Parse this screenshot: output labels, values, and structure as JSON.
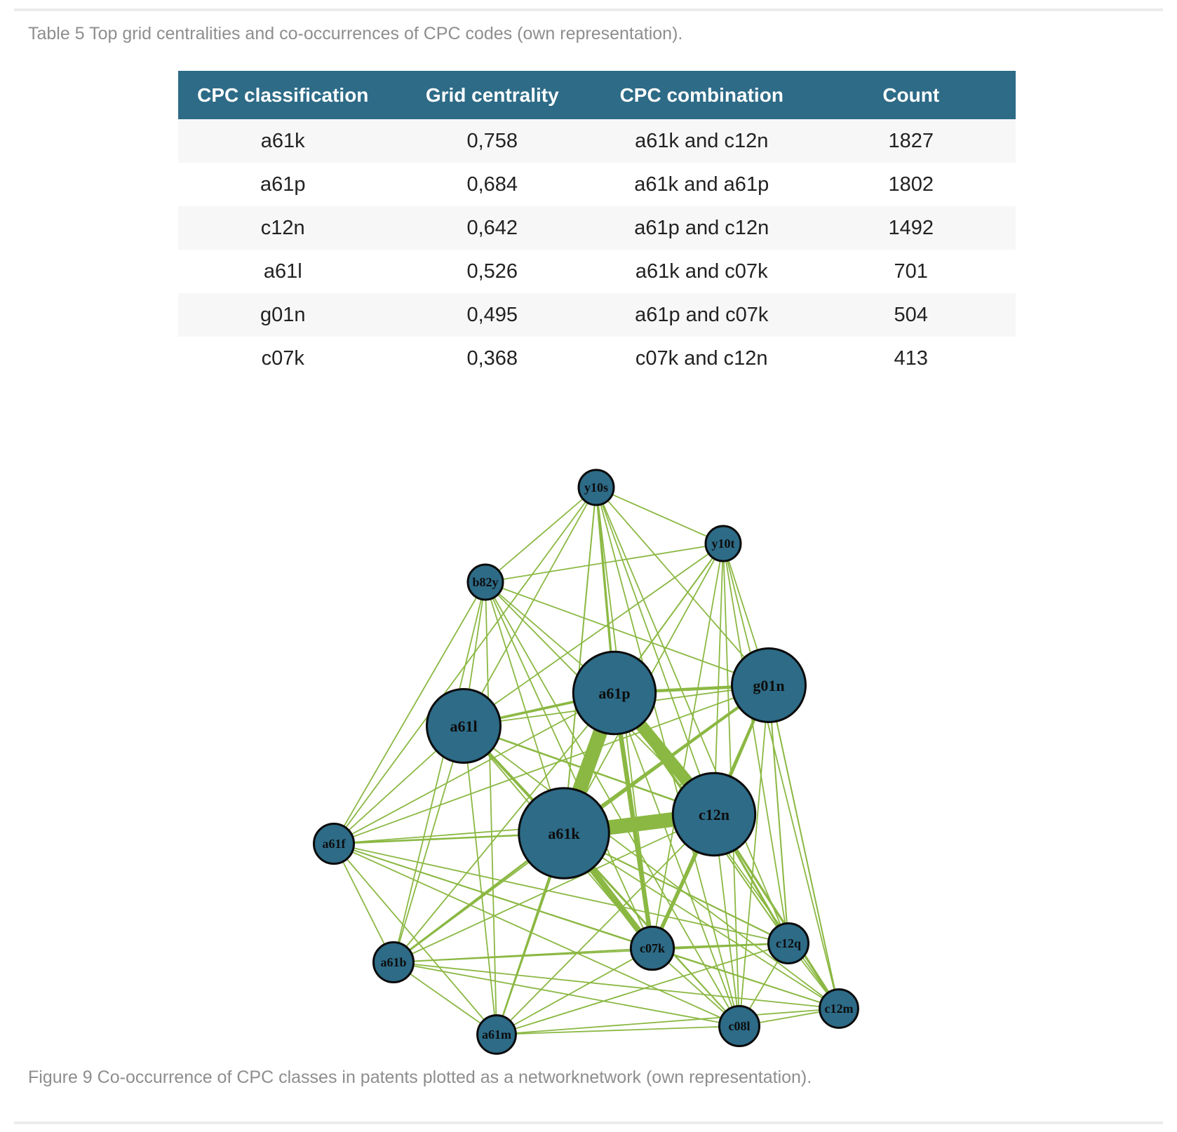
{
  "table_caption": "Table 5 Top grid centralities and co-occurrences of CPC codes (own representation).",
  "table": {
    "headers": [
      "CPC classification",
      "Grid centrality",
      "CPC combination",
      "Count"
    ],
    "rows": [
      [
        "a61k",
        "0,758",
        "a61k and c12n",
        "1827"
      ],
      [
        "a61p",
        "0,684",
        "a61k and a61p",
        "1802"
      ],
      [
        "c12n",
        "0,642",
        "a61p and c12n",
        "1492"
      ],
      [
        "a61l",
        "0,526",
        "a61k and c07k",
        "701"
      ],
      [
        "g01n",
        "0,495",
        "a61p and c07k",
        "504"
      ],
      [
        "c07k",
        "0,368",
        "c07k and c12n",
        "413"
      ]
    ]
  },
  "figure_caption": "Figure 9 Co-occurrence of CPC classes in patents plotted as a networknetwork (own representation).",
  "network": {
    "node_color": "#2d6b87",
    "edge_color": "#8bb843",
    "nodes": [
      {
        "id": "y10s",
        "label": "y10s",
        "size": 1
      },
      {
        "id": "y10t",
        "label": "y10t",
        "size": 1
      },
      {
        "id": "b82y",
        "label": "b82y",
        "size": 1
      },
      {
        "id": "a61p",
        "label": "a61p",
        "size": 5
      },
      {
        "id": "g01n",
        "label": "g01n",
        "size": 4
      },
      {
        "id": "a61l",
        "label": "a61l",
        "size": 4
      },
      {
        "id": "c12n",
        "label": "c12n",
        "size": 5
      },
      {
        "id": "a61k",
        "label": "a61k",
        "size": 6
      },
      {
        "id": "a61f",
        "label": "a61f",
        "size": 1.3
      },
      {
        "id": "c07k",
        "label": "c07k",
        "size": 1.5
      },
      {
        "id": "c12q",
        "label": "c12q",
        "size": 1.3
      },
      {
        "id": "a61b",
        "label": "a61b",
        "size": 1.3
      },
      {
        "id": "c12m",
        "label": "c12m",
        "size": 1.2
      },
      {
        "id": "c08l",
        "label": "c08l",
        "size": 1.3
      },
      {
        "id": "a61m",
        "label": "a61m",
        "size": 1.2
      }
    ],
    "edges": [
      {
        "source": "a61k",
        "target": "c12n",
        "weight": 1827
      },
      {
        "source": "a61k",
        "target": "a61p",
        "weight": 1802
      },
      {
        "source": "a61p",
        "target": "c12n",
        "weight": 1492
      },
      {
        "source": "a61k",
        "target": "c07k",
        "weight": 701
      },
      {
        "source": "a61p",
        "target": "c07k",
        "weight": 504
      },
      {
        "source": "c07k",
        "target": "c12n",
        "weight": 413
      },
      {
        "source": "a61p",
        "target": "g01n",
        "weight": 320
      },
      {
        "source": "a61k",
        "target": "g01n",
        "weight": 300
      },
      {
        "source": "g01n",
        "target": "c12n",
        "weight": 300
      },
      {
        "source": "a61l",
        "target": "a61k",
        "weight": 280
      },
      {
        "source": "a61l",
        "target": "a61p",
        "weight": 250
      },
      {
        "source": "a61p",
        "target": "y10s",
        "weight": 220
      },
      {
        "source": "c12n",
        "target": "c12m",
        "weight": 210
      },
      {
        "source": "c12n",
        "target": "c12q",
        "weight": 200
      },
      {
        "source": "a61k",
        "target": "a61b",
        "weight": 190
      },
      {
        "source": "a61l",
        "target": "c12n",
        "weight": 150
      },
      {
        "source": "a61k",
        "target": "a61m",
        "weight": 150
      },
      {
        "source": "a61f",
        "target": "a61k",
        "weight": 150
      },
      {
        "source": "c07k",
        "target": "c12q",
        "weight": 150
      },
      {
        "source": "a61k",
        "target": "c12q",
        "weight": 120
      },
      {
        "source": "a61p",
        "target": "c12q",
        "weight": 100
      },
      {
        "source": "g01n",
        "target": "c07k",
        "weight": 100
      },
      {
        "source": "g01n",
        "target": "c12q",
        "weight": 100
      },
      {
        "source": "g01n",
        "target": "c12m",
        "weight": 100
      },
      {
        "source": "a61k",
        "target": "y10s",
        "weight": 100
      },
      {
        "source": "a61p",
        "target": "y10t",
        "weight": 100
      },
      {
        "source": "y10s",
        "target": "b82y",
        "weight": 80
      },
      {
        "source": "y10s",
        "target": "y10t",
        "weight": 80
      },
      {
        "source": "y10s",
        "target": "a61l",
        "weight": 80
      },
      {
        "source": "y10s",
        "target": "c12n",
        "weight": 80
      },
      {
        "source": "y10s",
        "target": "g01n",
        "weight": 80
      },
      {
        "source": "y10s",
        "target": "c07k",
        "weight": 80
      },
      {
        "source": "y10s",
        "target": "c12q",
        "weight": 80
      },
      {
        "source": "y10s",
        "target": "c08l",
        "weight": 80
      },
      {
        "source": "y10s",
        "target": "a61f",
        "weight": 80
      },
      {
        "source": "y10t",
        "target": "b82y",
        "weight": 80
      },
      {
        "source": "y10t",
        "target": "a61l",
        "weight": 80
      },
      {
        "source": "y10t",
        "target": "a61k",
        "weight": 80
      },
      {
        "source": "y10t",
        "target": "c12n",
        "weight": 80
      },
      {
        "source": "y10t",
        "target": "g01n",
        "weight": 80
      },
      {
        "source": "y10t",
        "target": "c07k",
        "weight": 80
      },
      {
        "source": "y10t",
        "target": "c12m",
        "weight": 80
      },
      {
        "source": "y10t",
        "target": "c08l",
        "weight": 80
      },
      {
        "source": "y10t",
        "target": "c12q",
        "weight": 80
      },
      {
        "source": "b82y",
        "target": "a61l",
        "weight": 80
      },
      {
        "source": "b82y",
        "target": "a61k",
        "weight": 80
      },
      {
        "source": "b82y",
        "target": "a61p",
        "weight": 80
      },
      {
        "source": "b82y",
        "target": "c12n",
        "weight": 80
      },
      {
        "source": "b82y",
        "target": "g01n",
        "weight": 80
      },
      {
        "source": "b82y",
        "target": "a61f",
        "weight": 80
      },
      {
        "source": "b82y",
        "target": "a61b",
        "weight": 80
      },
      {
        "source": "b82y",
        "target": "a61m",
        "weight": 80
      },
      {
        "source": "b82y",
        "target": "c07k",
        "weight": 80
      },
      {
        "source": "b82y",
        "target": "c08l",
        "weight": 80
      },
      {
        "source": "a61l",
        "target": "g01n",
        "weight": 80
      },
      {
        "source": "a61l",
        "target": "a61f",
        "weight": 80
      },
      {
        "source": "a61l",
        "target": "a61b",
        "weight": 80
      },
      {
        "source": "a61l",
        "target": "a61m",
        "weight": 80
      },
      {
        "source": "a61l",
        "target": "c07k",
        "weight": 80
      },
      {
        "source": "a61l",
        "target": "c08l",
        "weight": 80
      },
      {
        "source": "a61l",
        "target": "c12m",
        "weight": 80
      },
      {
        "source": "a61p",
        "target": "a61f",
        "weight": 80
      },
      {
        "source": "a61p",
        "target": "a61b",
        "weight": 80
      },
      {
        "source": "a61p",
        "target": "a61m",
        "weight": 80
      },
      {
        "source": "a61p",
        "target": "c08l",
        "weight": 80
      },
      {
        "source": "a61p",
        "target": "c12m",
        "weight": 80
      },
      {
        "source": "g01n",
        "target": "a61f",
        "weight": 80
      },
      {
        "source": "g01n",
        "target": "a61b",
        "weight": 80
      },
      {
        "source": "g01n",
        "target": "c08l",
        "weight": 80
      },
      {
        "source": "c12n",
        "target": "a61f",
        "weight": 80
      },
      {
        "source": "c12n",
        "target": "a61b",
        "weight": 80
      },
      {
        "source": "c12n",
        "target": "a61m",
        "weight": 80
      },
      {
        "source": "c12n",
        "target": "c08l",
        "weight": 80
      },
      {
        "source": "a61k",
        "target": "c08l",
        "weight": 80
      },
      {
        "source": "a61k",
        "target": "c12m",
        "weight": 80
      },
      {
        "source": "a61f",
        "target": "a61b",
        "weight": 80
      },
      {
        "source": "a61f",
        "target": "a61m",
        "weight": 80
      },
      {
        "source": "a61f",
        "target": "c07k",
        "weight": 80
      },
      {
        "source": "a61f",
        "target": "c08l",
        "weight": 80
      },
      {
        "source": "a61f",
        "target": "c12q",
        "weight": 80
      },
      {
        "source": "a61f",
        "target": "c12m",
        "weight": 80
      },
      {
        "source": "a61b",
        "target": "a61m",
        "weight": 80
      },
      {
        "source": "a61b",
        "target": "c07k",
        "weight": 80
      },
      {
        "source": "a61b",
        "target": "c08l",
        "weight": 80
      },
      {
        "source": "a61b",
        "target": "c12q",
        "weight": 80
      },
      {
        "source": "a61b",
        "target": "c12m",
        "weight": 80
      },
      {
        "source": "a61m",
        "target": "c07k",
        "weight": 80
      },
      {
        "source": "a61m",
        "target": "c08l",
        "weight": 80
      },
      {
        "source": "a61m",
        "target": "c12q",
        "weight": 80
      },
      {
        "source": "a61m",
        "target": "c12m",
        "weight": 80
      },
      {
        "source": "c07k",
        "target": "c08l",
        "weight": 80
      },
      {
        "source": "c07k",
        "target": "c12m",
        "weight": 80
      },
      {
        "source": "c08l",
        "target": "c12q",
        "weight": 80
      },
      {
        "source": "c08l",
        "target": "c12m",
        "weight": 80
      },
      {
        "source": "c12q",
        "target": "c12m",
        "weight": 80
      }
    ]
  }
}
